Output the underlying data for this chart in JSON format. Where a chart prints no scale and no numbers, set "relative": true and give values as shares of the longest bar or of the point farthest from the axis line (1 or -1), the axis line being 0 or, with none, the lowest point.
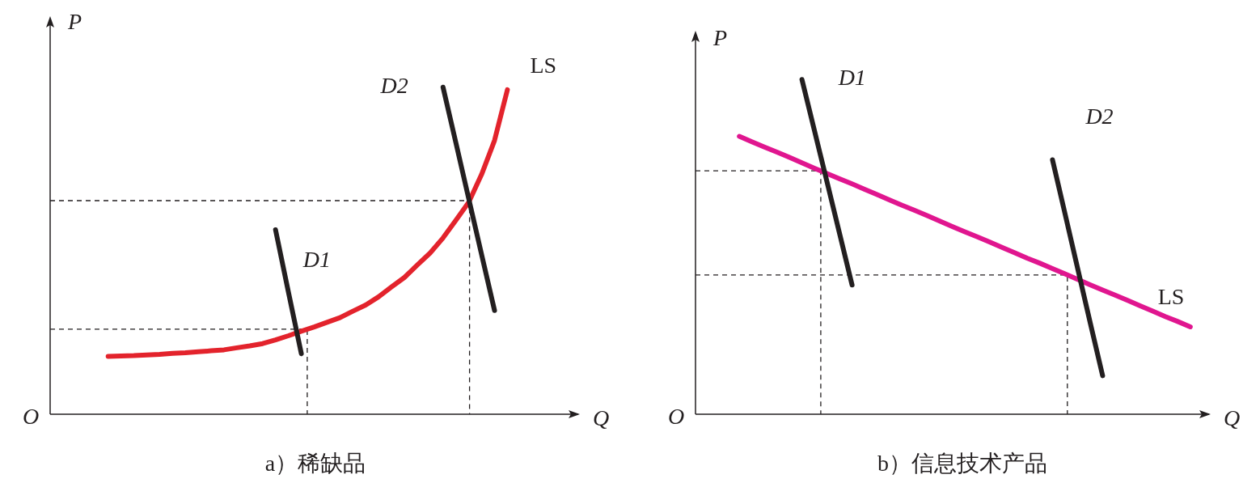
{
  "chart_data": [
    {
      "type": "line",
      "relative": true,
      "title": "a）稀缺品",
      "xlabel": "Q",
      "ylabel": "P",
      "annotations": [
        "O"
      ],
      "categories": [
        null,
        null,
        null,
        null,
        null,
        null,
        null,
        null,
        null,
        null,
        null,
        null,
        null,
        null,
        null,
        null,
        null,
        null,
        null,
        null,
        null,
        null,
        null,
        null,
        null,
        null,
        null,
        null,
        null,
        null,
        null,
        null,
        null,
        null,
        null,
        null,
        null,
        null,
        null,
        null,
        null
      ],
      "series": [
        {
          "name": "LS",
          "color": "#e3232c",
          "values": [
            null,
            null,
            null,
            null,
            0.177,
            0.178,
            0.179,
            0.181,
            0.183,
            0.186,
            0.188,
            0.191,
            0.194,
            0.197,
            0.203,
            0.209,
            0.216,
            0.227,
            0.24,
            0.254,
            0.267,
            0.281,
            0.295,
            0.315,
            0.334,
            0.359,
            0.389,
            0.418,
            0.456,
            0.493,
            0.539,
            0.593,
            0.648,
            0.733,
            0.837,
            0.992,
            null,
            null,
            null,
            null,
            null
          ]
        },
        {
          "name": "D1",
          "color": "#231f20",
          "values": [
            null,
            null,
            null,
            null,
            null,
            null,
            null,
            null,
            null,
            null,
            null,
            null,
            null,
            null,
            null,
            null,
            null,
            0.564,
            0.374,
            0.185,
            null,
            null,
            null,
            null,
            null,
            null,
            null,
            null,
            null,
            null,
            null,
            null,
            null,
            null,
            null,
            null,
            null,
            null,
            null,
            null,
            null
          ]
        },
        {
          "name": "D2",
          "color": "#231f20",
          "values": [
            null,
            null,
            null,
            null,
            null,
            null,
            null,
            null,
            null,
            null,
            null,
            null,
            null,
            null,
            null,
            null,
            null,
            null,
            null,
            null,
            null,
            null,
            null,
            null,
            null,
            null,
            null,
            null,
            null,
            null,
            1,
            0.83,
            0.659,
            0.488,
            0.317,
            null,
            null,
            null,
            null,
            null,
            null
          ]
        }
      ],
      "ref_lines": [
        {
          "axis": "y",
          "value": 0.26,
          "color": "#231f20",
          "line_style": "dashed"
        },
        {
          "axis": "y",
          "value": 0.653,
          "color": "#231f20",
          "line_style": "dashed"
        }
      ]
    },
    {
      "type": "line",
      "relative": true,
      "title": "b）信息技术产品",
      "xlabel": "Q",
      "ylabel": "P",
      "annotations": [
        "O"
      ],
      "categories": [
        null,
        null,
        null,
        null,
        null,
        null,
        null,
        null,
        null,
        null,
        null,
        null,
        null,
        null,
        null,
        null,
        null,
        null,
        null,
        null,
        null,
        null,
        null,
        null,
        null,
        null,
        null,
        null,
        null,
        null,
        null,
        null,
        null,
        null,
        null,
        null,
        null,
        null,
        null,
        null,
        null
      ],
      "series": [
        {
          "name": "LS",
          "color": "#e0168f",
          "values": [
            null,
            null,
            null,
            0.83,
            0.814,
            0.798,
            0.783,
            0.767,
            0.751,
            0.735,
            0.719,
            0.703,
            0.688,
            0.672,
            0.656,
            0.64,
            0.624,
            0.609,
            0.593,
            0.577,
            0.561,
            0.545,
            0.53,
            0.514,
            0.498,
            0.482,
            0.466,
            0.451,
            0.435,
            0.419,
            0.403,
            0.387,
            0.371,
            0.356,
            0.34,
            0.324,
            0.308,
            0.292,
            0.277,
            0.261,
            null
          ]
        },
        {
          "name": "D1",
          "color": "#231f20",
          "values": [
            null,
            null,
            null,
            null,
            null,
            null,
            null,
            null,
            1,
            0.847,
            0.694,
            0.54,
            0.386,
            null,
            null,
            null,
            null,
            null,
            null,
            null,
            null,
            null,
            null,
            null,
            null,
            null,
            null,
            null,
            null,
            null,
            null,
            null,
            null,
            null,
            null,
            null,
            null,
            null,
            null,
            null,
            null
          ]
        },
        {
          "name": "D2",
          "color": "#231f20",
          "values": [
            null,
            null,
            null,
            null,
            null,
            null,
            null,
            null,
            null,
            null,
            null,
            null,
            null,
            null,
            null,
            null,
            null,
            null,
            null,
            null,
            null,
            null,
            null,
            null,
            null,
            null,
            null,
            null,
            0.76,
            0.599,
            0.437,
            0.275,
            0.115,
            null,
            null,
            null,
            null,
            null,
            null,
            null,
            null
          ]
        }
      ],
      "ref_lines": [
        {
          "axis": "y",
          "value": 0.727,
          "color": "#231f20",
          "line_style": "dashed"
        },
        {
          "axis": "y",
          "value": 0.416,
          "color": "#231f20",
          "line_style": "dashed"
        }
      ]
    }
  ]
}
